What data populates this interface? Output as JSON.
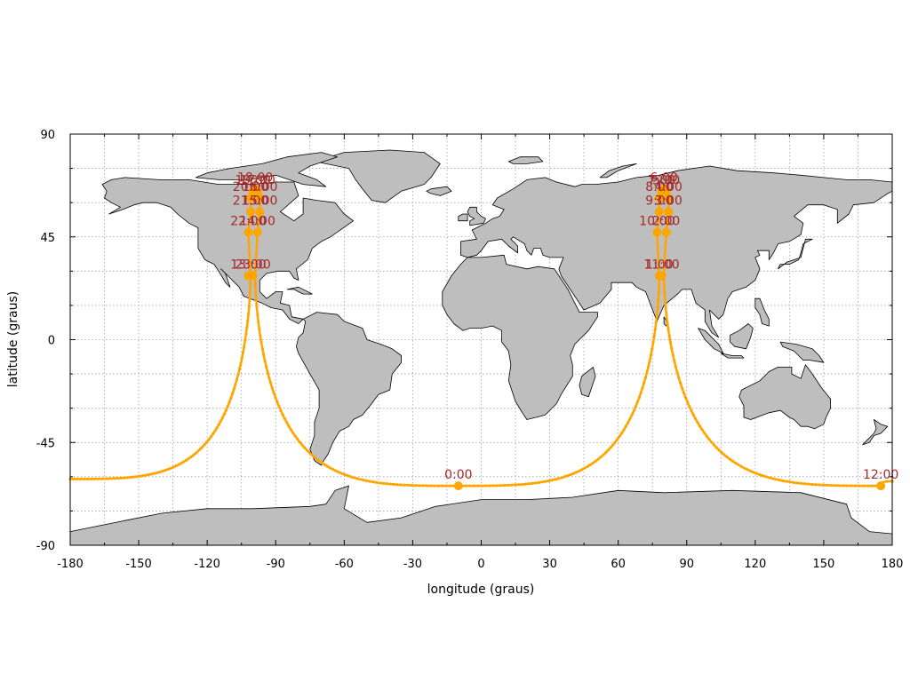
{
  "colors": {
    "track": "#ffa500",
    "time_label": "#a52a2a",
    "land": "#bebebe",
    "grid": "#a0a0a0"
  },
  "chart_data": {
    "type": "map-ground-track",
    "xlabel": "longitude (graus)",
    "ylabel": "latitude (graus)",
    "xlim": [
      -180,
      180
    ],
    "ylim": [
      -90,
      90
    ],
    "xticks": [
      -180,
      -150,
      -120,
      -90,
      -60,
      -30,
      0,
      30,
      60,
      90,
      120,
      150,
      180
    ],
    "yticks": [
      -90,
      -45,
      0,
      45,
      90
    ],
    "grid": true,
    "track": {
      "perigee_lat": -63.4,
      "apogee_lat": 63.4,
      "northern_lobes": [
        {
          "center_lon": -99,
          "half_width": 2
        },
        {
          "center_lon": 80,
          "half_width": 2
        }
      ],
      "southern_crossings": [
        {
          "lon": -10,
          "lat": -64
        },
        {
          "lon": 175,
          "lat": -64
        }
      ]
    },
    "time_markers": [
      {
        "label": "0:00",
        "lon": -10,
        "lat": -64
      },
      {
        "label": "1:00",
        "lon": 78,
        "lat": 28
      },
      {
        "label": "2:00",
        "lon": 81,
        "lat": 47
      },
      {
        "label": "3:00",
        "lon": 82,
        "lat": 56
      },
      {
        "label": "4:00",
        "lon": 82,
        "lat": 62
      },
      {
        "label": "5:00",
        "lon": 81,
        "lat": 65
      },
      {
        "label": "6:00",
        "lon": 80,
        "lat": 66
      },
      {
        "label": "7:00",
        "lon": 79,
        "lat": 65
      },
      {
        "label": "8:00",
        "lon": 78,
        "lat": 62
      },
      {
        "label": "9:00",
        "lon": 78,
        "lat": 56
      },
      {
        "label": "10:00",
        "lon": 77,
        "lat": 47
      },
      {
        "label": "11:00",
        "lon": 79,
        "lat": 28
      },
      {
        "label": "12:00",
        "lon": 175,
        "lat": -64
      },
      {
        "label": "13:00",
        "lon": -102,
        "lat": 28
      },
      {
        "label": "14:00",
        "lon": -98,
        "lat": 47
      },
      {
        "label": "15:00",
        "lon": -97,
        "lat": 56
      },
      {
        "label": "16:00",
        "lon": -97,
        "lat": 62
      },
      {
        "label": "17:00",
        "lon": -98,
        "lat": 65
      },
      {
        "label": "18:00",
        "lon": -99,
        "lat": 66
      },
      {
        "label": "19:00",
        "lon": -100,
        "lat": 65
      },
      {
        "label": "20:00",
        "lon": -101,
        "lat": 62
      },
      {
        "label": "21:00",
        "lon": -101,
        "lat": 56
      },
      {
        "label": "22:00",
        "lon": -102,
        "lat": 47
      },
      {
        "label": "23:00",
        "lon": -100,
        "lat": 28
      }
    ]
  }
}
